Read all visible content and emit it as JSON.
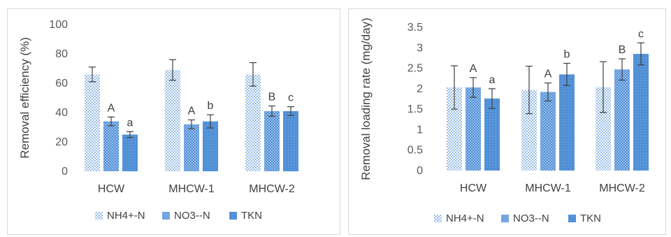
{
  "colors": {
    "series_fill": "#4f8fd6",
    "error_bar": "#404040",
    "axis_text": "#595959"
  },
  "series_names": [
    "NH4+-N",
    "NO3--N",
    "TKN"
  ],
  "chart_data": [
    {
      "type": "bar",
      "categories": [
        "HCW",
        "MHCW-1",
        "MHCW-2"
      ],
      "ylabel": "Removal efficiency (%)",
      "ylim": [
        0,
        100
      ],
      "yticks": [
        "0",
        "20",
        "40",
        "60",
        "80",
        "100"
      ],
      "legend": "bottom",
      "series": [
        {
          "name": "NH4+-N",
          "pattern": "dots",
          "values": [
            66,
            69,
            66
          ],
          "errors": [
            5,
            7,
            8
          ],
          "labels": [
            "",
            "",
            ""
          ]
        },
        {
          "name": "NO3--N",
          "pattern": "cross",
          "values": [
            34,
            32,
            41
          ],
          "errors": [
            3,
            3,
            3.5
          ],
          "labels": [
            "A",
            "A",
            "B"
          ]
        },
        {
          "name": "TKN",
          "pattern": "solid",
          "values": [
            25,
            34,
            41
          ],
          "errors": [
            2,
            4.5,
            3
          ],
          "labels": [
            "a",
            "b",
            "c"
          ]
        }
      ]
    },
    {
      "type": "bar",
      "categories": [
        "HCW",
        "MHCW-1",
        "MHCW-2"
      ],
      "ylabel": "Removal loading rate (mg/day)",
      "ylim": [
        0,
        3.5
      ],
      "yticks": [
        "0",
        "0.5",
        "1",
        "1.5",
        "2",
        "2.5",
        "3",
        "3.5"
      ],
      "legend": "bottom",
      "series": [
        {
          "name": "NH4+-N",
          "pattern": "dots",
          "values": [
            2.03,
            1.97,
            2.04
          ],
          "errors": [
            0.53,
            0.58,
            0.62
          ],
          "labels": [
            "",
            "",
            ""
          ]
        },
        {
          "name": "NO3--N",
          "pattern": "cross",
          "values": [
            2.03,
            1.92,
            2.47
          ],
          "errors": [
            0.24,
            0.22,
            0.26
          ],
          "labels": [
            "A",
            "A",
            "B"
          ]
        },
        {
          "name": "TKN",
          "pattern": "solid",
          "values": [
            1.76,
            2.35,
            2.85
          ],
          "errors": [
            0.24,
            0.27,
            0.27
          ],
          "labels": [
            "a",
            "b",
            "c"
          ]
        }
      ]
    }
  ]
}
